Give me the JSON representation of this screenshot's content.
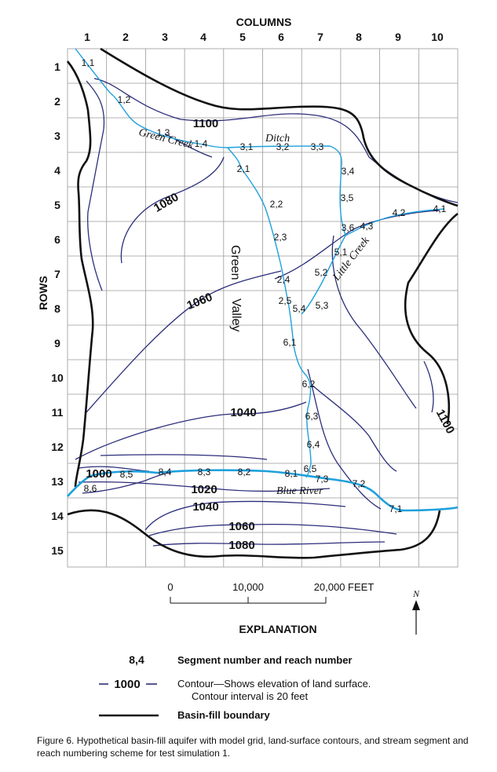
{
  "axes": {
    "columns_title": "COLUMNS",
    "rows_title": "ROWS",
    "columns": [
      "1",
      "2",
      "3",
      "4",
      "5",
      "6",
      "7",
      "8",
      "9",
      "10"
    ],
    "rows": [
      "1",
      "2",
      "3",
      "4",
      "5",
      "6",
      "7",
      "8",
      "9",
      "10",
      "11",
      "12",
      "13",
      "14",
      "15"
    ]
  },
  "reaches": [
    {
      "id": "1,1"
    },
    {
      "id": "1,2"
    },
    {
      "id": "1,3"
    },
    {
      "id": "1,4"
    },
    {
      "id": "2,1"
    },
    {
      "id": "2,2"
    },
    {
      "id": "2,3"
    },
    {
      "id": "2,4"
    },
    {
      "id": "2,5"
    },
    {
      "id": "3,1"
    },
    {
      "id": "3,2"
    },
    {
      "id": "3,3"
    },
    {
      "id": "3,4"
    },
    {
      "id": "3,5"
    },
    {
      "id": "3,6"
    },
    {
      "id": "4,1"
    },
    {
      "id": "4,2"
    },
    {
      "id": "4,3"
    },
    {
      "id": "5,1"
    },
    {
      "id": "5,2"
    },
    {
      "id": "5,3"
    },
    {
      "id": "5,4"
    },
    {
      "id": "6,1"
    },
    {
      "id": "6,2"
    },
    {
      "id": "6,3"
    },
    {
      "id": "6,4"
    },
    {
      "id": "6,5"
    },
    {
      "id": "7,1"
    },
    {
      "id": "7,2"
    },
    {
      "id": "7,3"
    },
    {
      "id": "8,1"
    },
    {
      "id": "8,2"
    },
    {
      "id": "8,3"
    },
    {
      "id": "8,4"
    },
    {
      "id": "8,5"
    },
    {
      "id": "8,6"
    }
  ],
  "contour_labels": [
    "1100",
    "1080",
    "1060",
    "1040",
    "1000",
    "1020",
    "1040",
    "1060",
    "1080",
    "1100"
  ],
  "place_names": {
    "green_creek": "Green Creek",
    "ditch": "Ditch",
    "little_creek": "Little Creek",
    "green_valley_1": "Green",
    "green_valley_2": "Valley",
    "blue_river": "Blue River"
  },
  "scale_bar": {
    "ticks": [
      "0",
      "10,000",
      "20,000 FEET"
    ]
  },
  "north_label": "N",
  "explanation": {
    "title": "EXPLANATION",
    "items": [
      {
        "symbol": "8,4",
        "text": "Segment number and reach number"
      },
      {
        "symbol": "1000",
        "text_line1": "Contour—Shows elevation of land surface.",
        "text_line2": "Contour interval is 20 feet"
      },
      {
        "text": "Basin-fill boundary"
      }
    ]
  },
  "caption": "Figure 6. Hypothetical basin-fill aquifer with model grid, land-surface contours, and stream segment and reach numbering scheme for test simulation 1.",
  "colors": {
    "stream": "#1ea0dc",
    "contour": "#2b2e7a",
    "boundary": "#111111",
    "grid": "#9a9a9a"
  }
}
